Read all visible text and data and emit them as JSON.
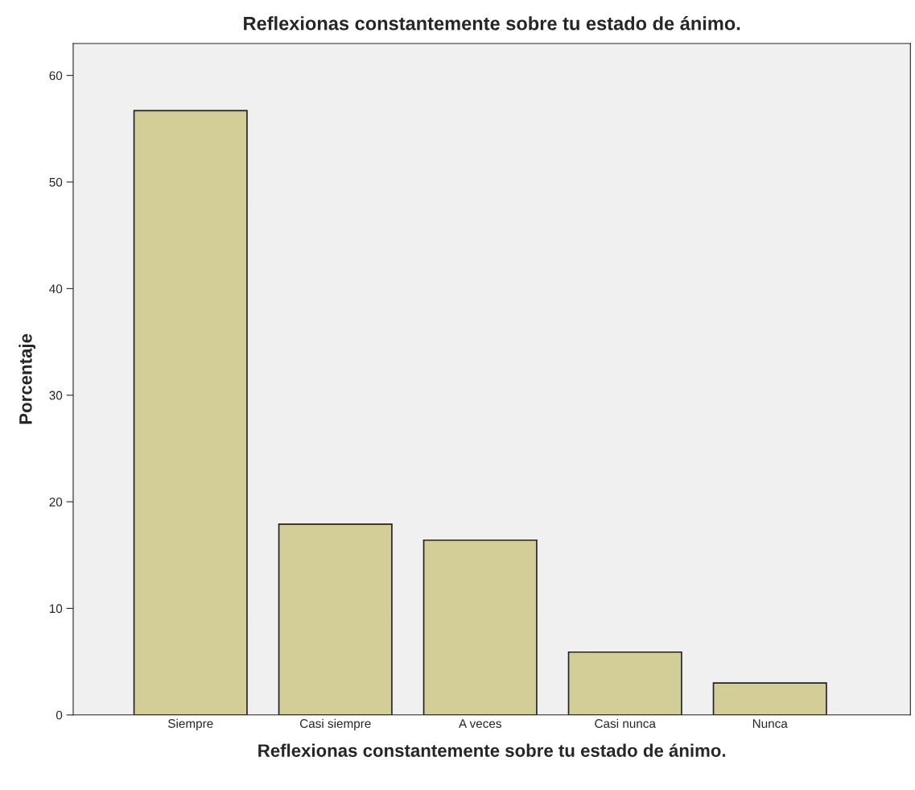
{
  "chart_data": {
    "type": "bar",
    "title": "Reflexionas constantemente sobre tu estado de ánimo.",
    "xlabel": "Reflexionas constantemente sobre tu estado de ánimo.",
    "ylabel": "Porcentaje",
    "categories": [
      "Siempre",
      "Casi siempre",
      "A veces",
      "Casi nunca",
      "Nunca"
    ],
    "values": [
      56.7,
      17.9,
      16.4,
      5.9,
      3.0
    ],
    "color": "#d3ce97",
    "ylim": [
      0,
      63
    ],
    "yticks": [
      0,
      10,
      20,
      30,
      40,
      50,
      60
    ],
    "grid": false
  }
}
